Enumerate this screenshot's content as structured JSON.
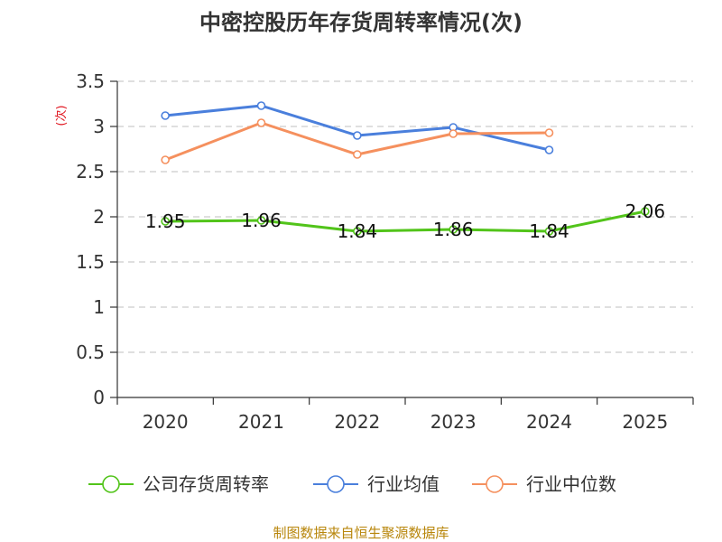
{
  "chart_data": {
    "type": "line",
    "title": "中密控股历年存货周转率情况(次)",
    "ylabel": "(次)",
    "xlabel": "",
    "categories": [
      "2020",
      "2021",
      "2022",
      "2023",
      "2024",
      "2025"
    ],
    "ylim": [
      0,
      3.5
    ],
    "yticks": [
      "0",
      "0.5",
      "1",
      "1.5",
      "2",
      "2.5",
      "3",
      "3.5"
    ],
    "ytick_values": [
      0,
      0.5,
      1,
      1.5,
      2,
      2.5,
      3,
      3.5
    ],
    "grid": true,
    "legend_position": "bottom",
    "series": [
      {
        "name": "公司存货周转率",
        "color": "#52c41a",
        "values": [
          1.95,
          1.96,
          1.84,
          1.86,
          1.84,
          2.06
        ],
        "labels": [
          "1.95",
          "1.96",
          "1.84",
          "1.86",
          "1.84",
          "2.06"
        ]
      },
      {
        "name": "行业均值",
        "color": "#4a7fdc",
        "values": [
          3.12,
          3.23,
          2.9,
          2.99,
          2.74,
          null
        ]
      },
      {
        "name": "行业中位数",
        "color": "#f5905e",
        "values": [
          2.63,
          3.04,
          2.69,
          2.92,
          2.93,
          null
        ]
      }
    ]
  },
  "footer": {
    "source": "制图数据来自恒生聚源数据库"
  }
}
